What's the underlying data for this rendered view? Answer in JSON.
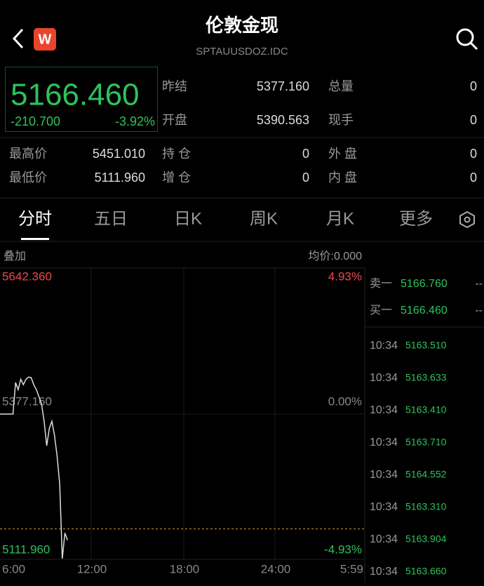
{
  "header": {
    "title": "伦敦金现",
    "subtitle": "SPTAUUSDOZ.IDC",
    "badge": "W"
  },
  "quote": {
    "price": "5166.460",
    "change": "-210.700",
    "change_pct": "-3.92%"
  },
  "stats": [
    {
      "label": "昨结",
      "value": "5377.160"
    },
    {
      "label": "总量",
      "value": "0"
    },
    {
      "label": "开盘",
      "value": "5390.563"
    },
    {
      "label": "现手",
      "value": "0"
    },
    {
      "label": "最高价",
      "value": "5451.010"
    },
    {
      "label": "持 仓",
      "value": "0"
    },
    {
      "label": "外 盘",
      "value": "0"
    },
    {
      "label": "最低价",
      "value": "5111.960"
    },
    {
      "label": "增 仓",
      "value": "0"
    },
    {
      "label": "内 盘",
      "value": "0"
    }
  ],
  "tabs": [
    "分时",
    "五日",
    "日K",
    "周K",
    "月K",
    "更多"
  ],
  "chart": {
    "overlay_label": "叠加",
    "avg_price": "均价:0.000",
    "ylim": [
      5111.96,
      5642.36
    ],
    "yticks": [
      {
        "value": 5642.36,
        "label": "5642.360"
      },
      {
        "value": 5377.16,
        "label": "5377.160"
      },
      {
        "value": 5111.96,
        "label": "5111.960"
      }
    ],
    "pct_ticks": [
      {
        "value": 4.93,
        "label": "4.93%"
      },
      {
        "value": 0,
        "label": "0.00%"
      },
      {
        "value": -4.93,
        "label": "-4.93%"
      }
    ],
    "x_labels": [
      "6:00",
      "12:00",
      "18:00",
      "24:00",
      "5:59"
    ],
    "last_price": 5166.46,
    "values": [
      5377.16,
      5377.16,
      5377.16,
      5377.16,
      5377.16,
      5377.16,
      5435,
      5422,
      5441,
      5431,
      5441,
      5445,
      5444,
      5431,
      5422,
      5409,
      5396,
      5364,
      5319,
      5351,
      5364,
      5338,
      5300,
      5249,
      5112,
      5159,
      5146
    ]
  },
  "order_book": [
    {
      "side": "卖一",
      "price": "5166.760",
      "volume": "--"
    },
    {
      "side": "买一",
      "price": "5166.460",
      "volume": "--"
    }
  ],
  "trades": [
    {
      "time": "10:34",
      "price": "5163.510"
    },
    {
      "time": "10:34",
      "price": "5163.633"
    },
    {
      "time": "10:34",
      "price": "5163.410"
    },
    {
      "time": "10:34",
      "price": "5163.710"
    },
    {
      "time": "10:34",
      "price": "5164.552"
    },
    {
      "time": "10:34",
      "price": "5163.310"
    },
    {
      "time": "10:34",
      "price": "5163.904"
    },
    {
      "time": "10:34",
      "price": "5163.660"
    }
  ]
}
